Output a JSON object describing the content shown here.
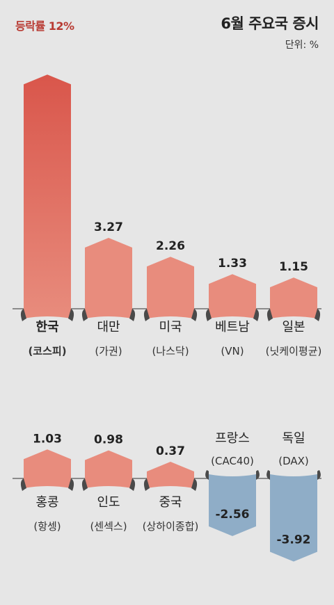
{
  "chart_data": {
    "type": "bar",
    "title": "6월 주요국 증시",
    "unit": "단위: %",
    "value_label": "등락률 12%",
    "colors": {
      "positive_top": "#d9564b",
      "positive": "#e88c7d",
      "negative": "#8fadc7",
      "curl": "#4a4a4a",
      "axis": "#555555"
    },
    "rows": [
      {
        "categories": [
          {
            "name": "한국",
            "sub": "(코스피)",
            "value": 12,
            "bold": true
          },
          {
            "name": "대만",
            "sub": "(가권)",
            "value": 3.27
          },
          {
            "name": "미국",
            "sub": "(나스닥)",
            "value": 2.26
          },
          {
            "name": "베트남",
            "sub": "(VN)",
            "value": 1.33
          },
          {
            "name": "일본",
            "sub": "(닛케이평균)",
            "value": 1.15
          }
        ]
      },
      {
        "categories": [
          {
            "name": "홍콩",
            "sub": "(항셍)",
            "value": 1.03
          },
          {
            "name": "인도",
            "sub": "(센섹스)",
            "value": 0.98
          },
          {
            "name": "중국",
            "sub": "(상하이종합)",
            "value": 0.37
          },
          {
            "name": "프랑스",
            "sub": "(CAC40)",
            "value": -2.56
          },
          {
            "name": "독일",
            "sub": "(DAX)",
            "value": -3.92
          }
        ]
      }
    ],
    "value_texts": [
      "3.27",
      "2.26",
      "1.33",
      "1.15",
      "1.03",
      "0.98",
      "0.37",
      "-2.56",
      "-3.92"
    ]
  }
}
